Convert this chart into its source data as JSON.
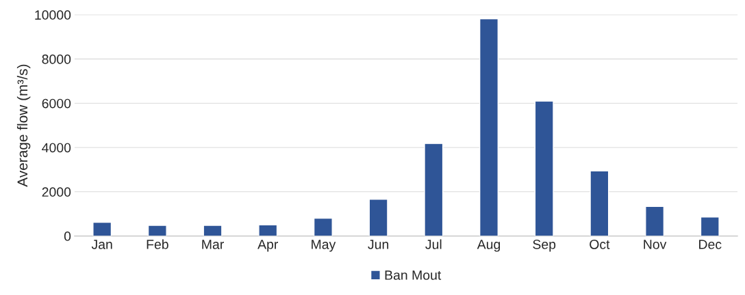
{
  "chart_data": {
    "type": "bar",
    "ylabel": "Average flow (m³/s)",
    "categories": [
      "Jan",
      "Feb",
      "Mar",
      "Apr",
      "May",
      "Jun",
      "Jul",
      "Aug",
      "Sep",
      "Oct",
      "Nov",
      "Dec"
    ],
    "series": [
      {
        "name": "Ban Mout",
        "color": "#2f5597",
        "values": [
          620,
          480,
          480,
          500,
          800,
          1660,
          4180,
          9820,
          6100,
          2940,
          1340,
          860
        ]
      }
    ],
    "ylim": [
      0,
      10000
    ],
    "yticks": [
      0,
      2000,
      4000,
      6000,
      8000,
      10000
    ],
    "grid": "y",
    "legend": "bottom"
  }
}
